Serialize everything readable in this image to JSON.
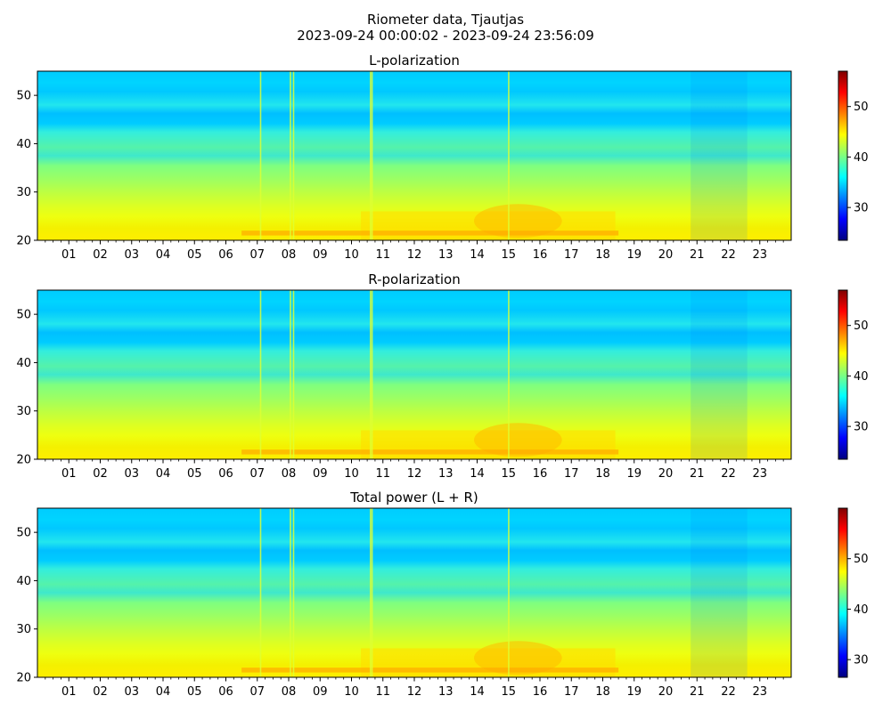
{
  "figure": {
    "title_line1": "Riometer data, Tjautjas",
    "title_line2": "2023-09-24 00:00:02 - 2023-09-24 23:56:09"
  },
  "colormap": [
    "#00007f",
    "#0000ff",
    "#007fff",
    "#00ffff",
    "#7fff7f",
    "#ffff00",
    "#ff7f00",
    "#ff0000",
    "#7f0000"
  ],
  "chart_data": [
    {
      "type": "heatmap",
      "title": "L-polarization",
      "x_tick_labels": [
        "01",
        "02",
        "03",
        "04",
        "05",
        "06",
        "07",
        "08",
        "09",
        "10",
        "11",
        "12",
        "13",
        "14",
        "15",
        "16",
        "17",
        "18",
        "19",
        "20",
        "21",
        "22",
        "23"
      ],
      "x_range_hours": [
        0,
        24
      ],
      "y_ticks": [
        20,
        30,
        40,
        50
      ],
      "ylim": [
        20,
        55
      ],
      "colorbar": {
        "range": [
          23.5,
          57
        ],
        "ticks": [
          30,
          40,
          50
        ]
      }
    },
    {
      "type": "heatmap",
      "title": "R-polarization",
      "x_tick_labels": [
        "01",
        "02",
        "03",
        "04",
        "05",
        "06",
        "07",
        "08",
        "09",
        "10",
        "11",
        "12",
        "13",
        "14",
        "15",
        "16",
        "17",
        "18",
        "19",
        "20",
        "21",
        "22",
        "23"
      ],
      "x_range_hours": [
        0,
        24
      ],
      "y_ticks": [
        20,
        30,
        40,
        50
      ],
      "ylim": [
        20,
        55
      ],
      "colorbar": {
        "range": [
          23.5,
          57
        ],
        "ticks": [
          30,
          40,
          50
        ]
      }
    },
    {
      "type": "heatmap",
      "title": "Total power (L + R)",
      "x_tick_labels": [
        "01",
        "02",
        "03",
        "04",
        "05",
        "06",
        "07",
        "08",
        "09",
        "10",
        "11",
        "12",
        "13",
        "14",
        "15",
        "16",
        "17",
        "18",
        "19",
        "20",
        "21",
        "22",
        "23"
      ],
      "x_range_hours": [
        0,
        24
      ],
      "y_ticks": [
        20,
        30,
        40,
        50
      ],
      "ylim": [
        20,
        55
      ],
      "colorbar": {
        "range": [
          26.5,
          60
        ],
        "ticks": [
          30,
          40,
          50
        ]
      }
    }
  ]
}
